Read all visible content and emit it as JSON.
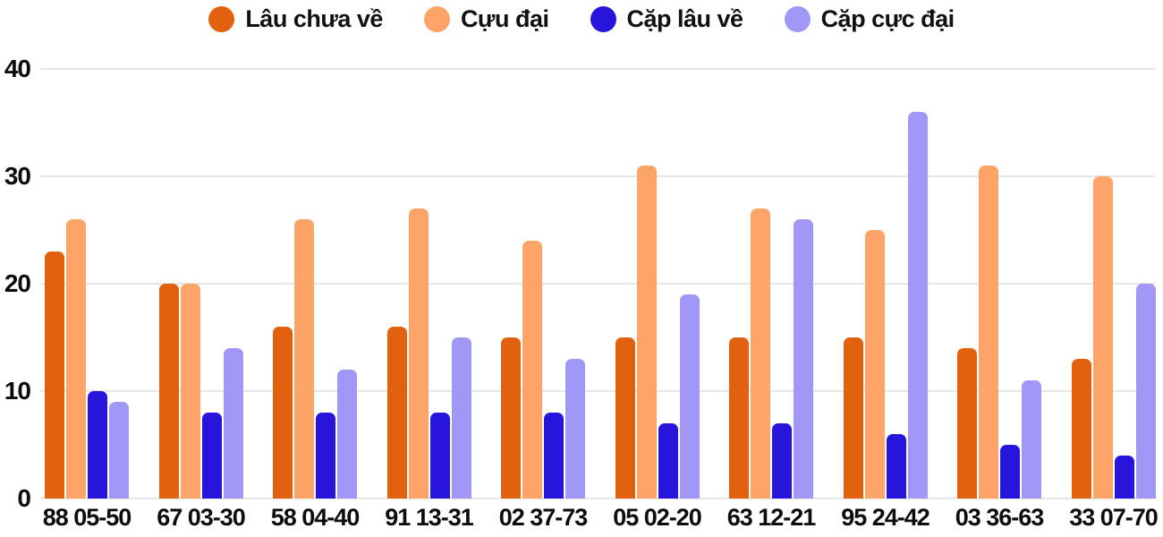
{
  "chart_data": {
    "type": "bar",
    "title": "",
    "xlabel": "",
    "ylabel": "",
    "categories": [
      "88 05-50",
      "67 03-30",
      "58 04-40",
      "91 13-31",
      "02 37-73",
      "05 02-20",
      "63 12-21",
      "95 24-42",
      "03 36-63",
      "33 07-70"
    ],
    "series": [
      {
        "name": "Lâu chưa về",
        "color": "#e2610e",
        "values": [
          23,
          20,
          16,
          16,
          15,
          15,
          15,
          15,
          14,
          13
        ]
      },
      {
        "name": "Cựu đại",
        "color": "#ffa468",
        "values": [
          26,
          20,
          26,
          27,
          24,
          31,
          27,
          25,
          31,
          30
        ]
      },
      {
        "name": "Cặp lâu về",
        "color": "#2815dc",
        "values": [
          10,
          8,
          8,
          8,
          8,
          7,
          7,
          6,
          5,
          4
        ]
      },
      {
        "name": "Cặp cực đại",
        "color": "#a197f7",
        "values": [
          9,
          14,
          12,
          15,
          13,
          19,
          26,
          36,
          11,
          20
        ]
      }
    ],
    "ylim": [
      0,
      40
    ],
    "yticks": [
      0,
      10,
      20,
      30,
      40
    ],
    "grid": true,
    "legend_position": "top"
  },
  "colors": {
    "grid": "#e6e6e6",
    "text": "#0d0d0d",
    "background": "#ffffff"
  }
}
